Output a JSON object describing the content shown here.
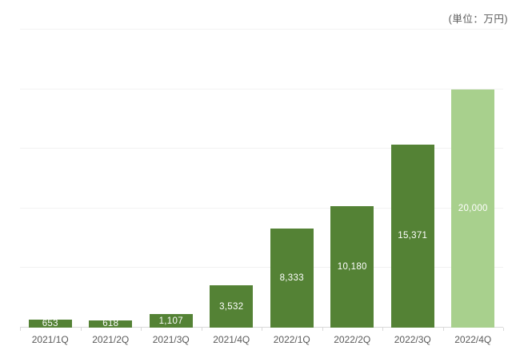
{
  "chart_data": {
    "type": "bar",
    "title": "",
    "unit_label": "(単位：万円)",
    "categories": [
      "2021/1Q",
      "2021/2Q",
      "2021/3Q",
      "2021/4Q",
      "2022/1Q",
      "2022/2Q",
      "2022/3Q",
      "2022/4Q"
    ],
    "values": [
      653,
      618,
      1107,
      3532,
      8333,
      10180,
      15371,
      20000
    ],
    "value_labels": [
      "653",
      "618",
      "1,107",
      "3,532",
      "8,333",
      "10,180",
      "15,371",
      "20,000"
    ],
    "xlabel": "",
    "ylabel": "",
    "ylim": [
      0,
      25000
    ],
    "grid_step": 5000,
    "grid": "horizontal-only",
    "legend": "none",
    "highlight_index": 7,
    "colors": {
      "bar": "#548235",
      "highlight": "#A8D08D",
      "bar_label": "#FFFFFF",
      "axis_text": "#595959",
      "gridline": "#F2F2F2",
      "axis_line": "#D9D9D9",
      "background": "#FFFFFF"
    }
  }
}
